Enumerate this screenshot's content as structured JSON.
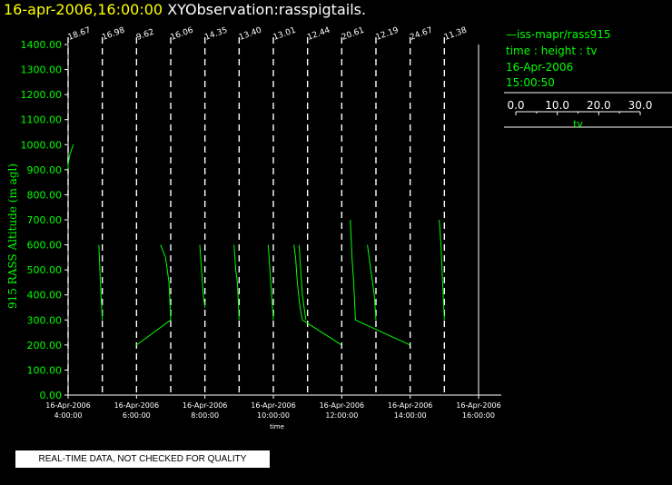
{
  "header": {
    "date_label": "16-apr-2006,16:00:00",
    "title": "XYObservation:rasspigtails."
  },
  "legend": {
    "source": "—iss-mapr/rass915",
    "variables": "time : height : tv",
    "date": "16-Apr-2006",
    "time": "15:00:50",
    "scale_ticks": [
      "0.0",
      "10.0",
      "20.0",
      "30.0"
    ],
    "scale_label": "tv",
    "scale_range": [
      0,
      30
    ]
  },
  "footer": {
    "quality_notice": "REAL-TIME DATA, NOT CHECKED FOR QUALITY"
  },
  "colors": {
    "data": "#00ff00",
    "axes": "#ffffff",
    "title_date": "#ffff00",
    "background": "#000000"
  },
  "chart_data": {
    "type": "line",
    "xlabel": "time",
    "ylabel": "915 RASS Altitude (m agl)",
    "ylim": [
      0,
      1400
    ],
    "xlim": [
      4.0,
      16.0
    ],
    "y_ticks": [
      "0.00",
      "100.00",
      "200.00",
      "300.00",
      "400.00",
      "500.00",
      "600.00",
      "700.00",
      "800.00",
      "900.00",
      "1000.00",
      "1100.00",
      "1200.00",
      "1300.00",
      "1400.00"
    ],
    "x_ticks": [
      {
        "x": 4,
        "date": "16-Apr-2006",
        "time": "4:00:00"
      },
      {
        "x": 6,
        "date": "16-Apr-2006",
        "time": "6:00:00"
      },
      {
        "x": 8,
        "date": "16-Apr-2006",
        "time": "8:00:00"
      },
      {
        "x": 10,
        "date": "16-Apr-2006",
        "time": "10:00:00"
      },
      {
        "x": 12,
        "date": "16-Apr-2006",
        "time": "12:00:00"
      },
      {
        "x": 14,
        "date": "16-Apr-2006",
        "time": "14:00:00"
      },
      {
        "x": 16,
        "date": "16-Apr-2006",
        "time": "16:00:00"
      }
    ],
    "pigtails": [
      {
        "base_time": 4.0,
        "label": "18.67",
        "points": [
          [
            4.0,
            900
          ],
          [
            4.0,
            920
          ],
          [
            4.05,
            960
          ],
          [
            4.15,
            1000
          ]
        ]
      },
      {
        "base_time": 5.0,
        "label": "16.98",
        "points": [
          [
            4.9,
            600
          ],
          [
            4.93,
            500
          ],
          [
            4.96,
            400
          ],
          [
            5.0,
            300
          ]
        ]
      },
      {
        "base_time": 6.0,
        "label": "9.62",
        "points": [
          [
            6.0,
            200
          ],
          [
            7.0,
            300
          ]
        ]
      },
      {
        "base_time": 7.0,
        "label": "16.06",
        "points": [
          [
            6.7,
            600
          ],
          [
            6.85,
            550
          ],
          [
            6.95,
            450
          ],
          [
            7.0,
            300
          ]
        ]
      },
      {
        "base_time": 8.0,
        "label": "14.35",
        "points": [
          [
            7.85,
            600
          ],
          [
            7.9,
            500
          ],
          [
            7.95,
            400
          ],
          [
            8.0,
            350
          ]
        ]
      },
      {
        "base_time": 9.0,
        "label": "13.40",
        "points": [
          [
            8.85,
            600
          ],
          [
            8.9,
            500
          ],
          [
            8.95,
            450
          ],
          [
            9.0,
            300
          ]
        ]
      },
      {
        "base_time": 10.0,
        "label": "13.01",
        "points": [
          [
            9.85,
            600
          ],
          [
            9.9,
            500
          ],
          [
            9.95,
            400
          ],
          [
            10.0,
            300
          ]
        ]
      },
      {
        "base_time": 11.0,
        "label": "12.44",
        "points": [
          [
            10.6,
            600
          ],
          [
            10.65,
            550
          ],
          [
            10.7,
            450
          ],
          [
            10.78,
            350
          ],
          [
            10.85,
            300
          ],
          [
            12.0,
            200
          ]
        ]
      },
      {
        "base_time": 12.0,
        "label": "20.61",
        "points": [
          [
            12.25,
            700
          ],
          [
            12.3,
            550
          ],
          [
            12.35,
            450
          ],
          [
            12.4,
            300
          ],
          [
            14.0,
            200
          ]
        ]
      },
      {
        "base_time": 13.0,
        "label": "12.19",
        "points": [
          [
            12.75,
            600
          ],
          [
            12.85,
            500
          ],
          [
            12.95,
            400
          ],
          [
            13.0,
            300
          ]
        ]
      },
      {
        "base_time": 14.0,
        "label": "24.67",
        "points": [
          [
            14.0,
            200
          ]
        ]
      },
      {
        "base_time": 15.0,
        "label": "11.38",
        "points": [
          [
            14.85,
            700
          ],
          [
            14.9,
            600
          ],
          [
            14.95,
            450
          ],
          [
            15.0,
            300
          ]
        ]
      }
    ],
    "extra_segments": [
      {
        "points": [
          [
            10.75,
            600
          ],
          [
            10.8,
            500
          ],
          [
            10.85,
            400
          ],
          [
            10.95,
            300
          ]
        ]
      }
    ]
  }
}
